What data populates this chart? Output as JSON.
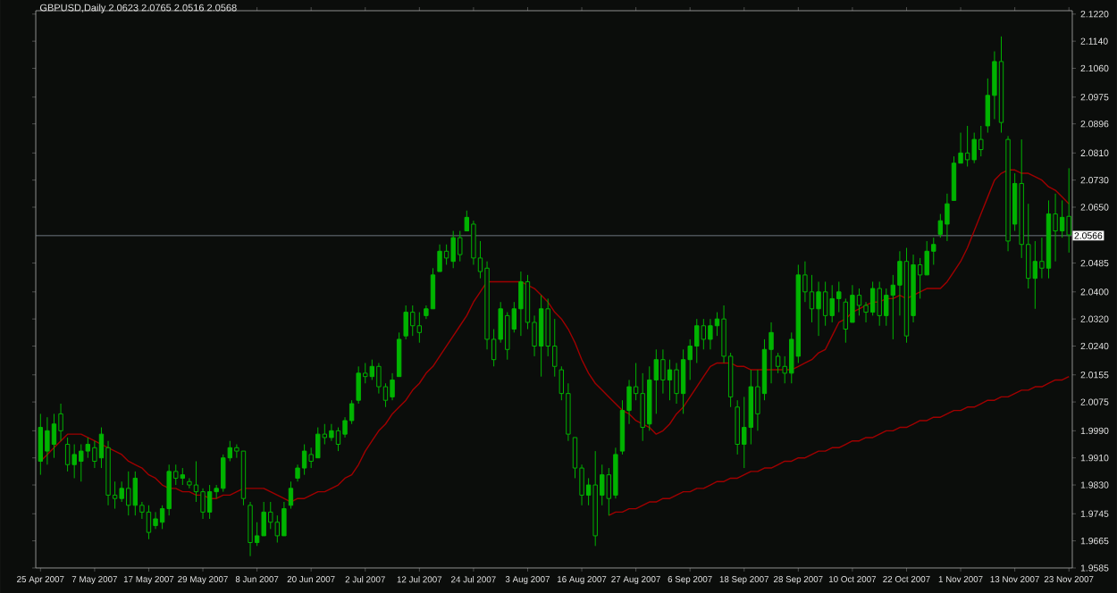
{
  "chart_data": {
    "type": "candlestick",
    "title": "GBPUSD,Daily  2.0623 2.0765 2.0516 2.0568",
    "color": "#00b400",
    "categories": [
      "25 Apr 2007",
      null,
      null,
      null,
      null,
      null,
      null,
      null,
      "7 May 2007",
      null,
      null,
      null,
      null,
      null,
      null,
      null,
      "17 May 2007",
      null,
      null,
      null,
      null,
      null,
      null,
      null,
      "29 May 2007",
      null,
      null,
      null,
      null,
      null,
      null,
      null,
      "8 Jun 2007",
      null,
      null,
      null,
      null,
      null,
      null,
      null,
      "20 Jun 2007",
      null,
      null,
      null,
      null,
      null,
      null,
      null,
      "2 Jul 2007",
      null,
      null,
      null,
      null,
      null,
      null,
      null,
      "12 Jul 2007",
      null,
      null,
      null,
      null,
      null,
      null,
      null,
      "24 Jul 2007",
      null,
      null,
      null,
      null,
      null,
      null,
      null,
      "3 Aug 2007",
      null,
      null,
      null,
      null,
      null,
      null,
      null,
      "16 Aug 2007",
      null,
      null,
      null,
      null,
      null,
      null,
      null,
      "27 Aug 2007",
      null,
      null,
      null,
      null,
      null,
      null,
      null,
      "6 Sep 2007",
      null,
      null,
      null,
      null,
      null,
      null,
      null,
      "18 Sep 2007",
      null,
      null,
      null,
      null,
      null,
      null,
      null,
      "28 Sep 2007",
      null,
      null,
      null,
      null,
      null,
      null,
      null,
      "10 Oct 2007",
      null,
      null,
      null,
      null,
      null,
      null,
      null,
      "22 Oct 2007",
      null,
      null,
      null,
      null,
      null,
      null,
      null,
      "1 Nov 2007",
      null,
      null,
      null,
      null,
      null,
      null,
      null,
      "13 Nov 2007",
      null,
      null,
      null,
      null,
      null,
      null,
      null,
      "23 Nov 2007"
    ],
    "ohlc": [
      [
        1.99,
        2.004,
        1.986,
        2.0
      ],
      [
        1.993,
        2.003,
        1.989,
        1.999
      ],
      [
        1.995,
        2.004,
        1.991,
        2.001
      ],
      [
        2.004,
        2.007,
        1.996,
        1.999
      ],
      [
        1.995,
        1.997,
        1.987,
        1.989
      ],
      [
        1.989,
        1.995,
        1.985,
        1.992
      ],
      [
        1.99,
        1.995,
        1.984,
        1.993
      ],
      [
        1.993,
        1.997,
        1.991,
        1.995
      ],
      [
        1.994,
        1.996,
        1.988,
        1.99
      ],
      [
        1.991,
        2.0,
        1.988,
        1.998
      ],
      [
        1.994,
        1.996,
        1.977,
        1.98
      ],
      [
        1.98,
        1.984,
        1.976,
        1.979
      ],
      [
        1.979,
        1.984,
        1.978,
        1.982
      ],
      [
        1.982,
        1.987,
        1.974,
        1.977
      ],
      [
        1.977,
        1.987,
        1.974,
        1.985
      ],
      [
        1.977,
        1.978,
        1.973,
        1.975
      ],
      [
        1.975,
        1.977,
        1.967,
        1.969
      ],
      [
        1.971,
        1.975,
        1.97,
        1.973
      ],
      [
        1.972,
        1.977,
        1.97,
        1.976
      ],
      [
        1.976,
        1.989,
        1.974,
        1.987
      ],
      [
        1.987,
        1.989,
        1.983,
        1.985
      ],
      [
        1.985,
        1.988,
        1.983,
        1.986
      ],
      [
        1.984,
        1.985,
        1.982,
        1.983
      ],
      [
        1.983,
        1.99,
        1.978,
        1.981
      ],
      [
        1.981,
        1.982,
        1.973,
        1.975
      ],
      [
        1.975,
        1.983,
        1.973,
        1.981
      ],
      [
        1.981,
        1.983,
        1.979,
        1.982
      ],
      [
        1.982,
        1.992,
        1.981,
        1.991
      ],
      [
        1.991,
        1.996,
        1.99,
        1.994
      ],
      [
        1.994,
        1.995,
        1.991,
        1.993
      ],
      [
        1.993,
        1.993,
        1.977,
        1.979
      ],
      [
        1.977,
        1.978,
        1.962,
        1.966
      ],
      [
        1.966,
        1.972,
        1.965,
        1.968
      ],
      [
        1.968,
        1.978,
        1.968,
        1.975
      ],
      [
        1.975,
        1.978,
        1.97,
        1.972
      ],
      [
        1.972,
        1.974,
        1.966,
        1.968
      ],
      [
        1.968,
        1.978,
        1.968,
        1.976
      ],
      [
        1.977,
        1.984,
        1.976,
        1.982
      ],
      [
        1.985,
        1.989,
        1.984,
        1.988
      ],
      [
        1.988,
        1.995,
        1.986,
        1.993
      ],
      [
        1.992,
        1.994,
        1.988,
        1.99
      ],
      [
        1.991,
        2.0,
        1.991,
        1.998
      ],
      [
        1.998,
        2.001,
        1.995,
        1.997
      ],
      [
        1.997,
        2.001,
        1.996,
        1.999
      ],
      [
        1.999,
        2.0,
        1.993,
        1.995
      ],
      [
        1.998,
        2.003,
        1.997,
        2.002
      ],
      [
        2.002,
        2.008,
        2.001,
        2.007
      ],
      [
        2.008,
        2.018,
        2.007,
        2.016
      ],
      [
        2.016,
        2.019,
        2.013,
        2.015
      ],
      [
        2.015,
        2.02,
        2.014,
        2.018
      ],
      [
        2.018,
        2.019,
        2.01,
        2.012
      ],
      [
        2.012,
        2.013,
        2.006,
        2.008
      ],
      [
        2.009,
        2.016,
        2.008,
        2.014
      ],
      [
        2.015,
        2.028,
        2.015,
        2.026
      ],
      [
        2.027,
        2.036,
        2.026,
        2.034
      ],
      [
        2.034,
        2.036,
        2.027,
        2.03
      ],
      [
        2.03,
        2.034,
        2.025,
        2.028
      ],
      [
        2.033,
        2.036,
        2.032,
        2.035
      ],
      [
        2.035,
        2.047,
        2.035,
        2.045
      ],
      [
        2.046,
        2.054,
        2.046,
        2.052
      ],
      [
        2.052,
        2.054,
        2.048,
        2.05
      ],
      [
        2.049,
        2.058,
        2.047,
        2.056
      ],
      [
        2.056,
        2.058,
        2.049,
        2.051
      ],
      [
        2.058,
        2.064,
        2.058,
        2.062
      ],
      [
        2.06,
        2.061,
        2.048,
        2.05
      ],
      [
        2.05,
        2.055,
        2.044,
        2.046
      ],
      [
        2.047,
        2.049,
        2.023,
        2.026
      ],
      [
        2.026,
        2.029,
        2.018,
        2.02
      ],
      [
        2.026,
        2.037,
        2.025,
        2.035
      ],
      [
        2.033,
        2.034,
        2.02,
        2.023
      ],
      [
        2.029,
        2.037,
        2.028,
        2.035
      ],
      [
        2.035,
        2.046,
        2.027,
        2.043
      ],
      [
        2.043,
        2.045,
        2.029,
        2.031
      ],
      [
        2.031,
        2.033,
        2.021,
        2.024
      ],
      [
        2.024,
        2.039,
        2.015,
        2.035
      ],
      [
        2.035,
        2.038,
        2.021,
        2.024
      ],
      [
        2.024,
        2.032,
        2.015,
        2.018
      ],
      [
        2.017,
        2.018,
        2.008,
        2.01
      ],
      [
        2.01,
        2.013,
        1.996,
        1.998
      ],
      [
        1.997,
        1.997,
        1.985,
        1.988
      ],
      [
        1.988,
        1.989,
        1.977,
        1.98
      ],
      [
        1.98,
        1.985,
        1.977,
        1.983
      ],
      [
        1.983,
        1.993,
        1.965,
        1.968
      ],
      [
        1.98,
        1.989,
        1.977,
        1.986
      ],
      [
        1.986,
        1.988,
        1.974,
        1.979
      ],
      [
        1.98,
        1.994,
        1.979,
        1.992
      ],
      [
        1.993,
        2.008,
        1.992,
        2.005
      ],
      [
        2.005,
        2.014,
        2.001,
        2.012
      ],
      [
        2.012,
        2.019,
        2.008,
        2.01
      ],
      [
        2.01,
        2.016,
        1.996,
        2.0
      ],
      [
        2.001,
        2.018,
        1.999,
        2.014
      ],
      [
        2.014,
        2.023,
        2.004,
        2.02
      ],
      [
        2.02,
        2.023,
        2.01,
        2.014
      ],
      [
        2.014,
        2.02,
        2.008,
        2.017
      ],
      [
        2.017,
        2.019,
        2.007,
        2.01
      ],
      [
        2.01,
        2.023,
        2.004,
        2.02
      ],
      [
        2.02,
        2.026,
        2.014,
        2.024
      ],
      [
        2.024,
        2.032,
        2.019,
        2.03
      ],
      [
        2.03,
        2.032,
        2.023,
        2.026
      ],
      [
        2.026,
        2.032,
        2.023,
        2.03
      ],
      [
        2.03,
        2.034,
        2.027,
        2.032
      ],
      [
        2.032,
        2.036,
        2.019,
        2.021
      ],
      [
        2.021,
        2.022,
        2.006,
        2.009
      ],
      [
        2.006,
        2.008,
        1.992,
        1.995
      ],
      [
        1.995,
        2.009,
        1.988,
        2.0
      ],
      [
        2.0,
        2.017,
        1.995,
        2.012
      ],
      [
        2.012,
        2.017,
        1.999,
        2.004
      ],
      [
        2.01,
        2.026,
        2.008,
        2.023
      ],
      [
        2.023,
        2.031,
        2.013,
        2.028
      ],
      [
        2.021,
        2.022,
        2.016,
        2.018
      ],
      [
        2.018,
        2.021,
        2.013,
        2.016
      ],
      [
        2.016,
        2.028,
        2.013,
        2.026
      ],
      [
        2.021,
        2.048,
        2.019,
        2.045
      ],
      [
        2.045,
        2.049,
        2.037,
        2.04
      ],
      [
        2.04,
        2.045,
        2.031,
        2.035
      ],
      [
        2.035,
        2.043,
        2.027,
        2.04
      ],
      [
        2.04,
        2.043,
        2.03,
        2.033
      ],
      [
        2.033,
        2.042,
        2.031,
        2.038
      ],
      [
        2.038,
        2.043,
        2.034,
        2.04
      ],
      [
        2.037,
        2.038,
        2.025,
        2.029
      ],
      [
        2.031,
        2.042,
        2.031,
        2.039
      ],
      [
        2.039,
        2.041,
        2.033,
        2.036
      ],
      [
        2.036,
        2.037,
        2.031,
        2.034
      ],
      [
        2.034,
        2.043,
        2.033,
        2.041
      ],
      [
        2.041,
        2.043,
        2.03,
        2.033
      ],
      [
        2.033,
        2.041,
        2.03,
        2.039
      ],
      [
        2.039,
        2.045,
        2.026,
        2.042
      ],
      [
        2.042,
        2.052,
        2.033,
        2.049
      ],
      [
        2.049,
        2.053,
        2.025,
        2.027
      ],
      [
        2.033,
        2.051,
        2.031,
        2.048
      ],
      [
        2.048,
        2.05,
        2.038,
        2.045
      ],
      [
        2.045,
        2.055,
        2.045,
        2.052
      ],
      [
        2.052,
        2.056,
        2.048,
        2.054
      ],
      [
        2.057,
        2.063,
        2.056,
        2.061
      ],
      [
        2.06,
        2.069,
        2.055,
        2.066
      ],
      [
        2.067,
        2.08,
        2.067,
        2.078
      ],
      [
        2.078,
        2.087,
        2.078,
        2.081
      ],
      [
        2.081,
        2.089,
        2.077,
        2.079
      ],
      [
        2.079,
        2.087,
        2.078,
        2.085
      ],
      [
        2.085,
        2.089,
        2.08,
        2.082
      ],
      [
        2.089,
        2.103,
        2.087,
        2.098
      ],
      [
        2.098,
        2.111,
        2.091,
        2.108
      ],
      [
        2.108,
        2.1154,
        2.087,
        2.09
      ],
      [
        2.085,
        2.086,
        2.052,
        2.055
      ],
      [
        2.06,
        2.075,
        2.058,
        2.072
      ],
      [
        2.072,
        2.085,
        2.05,
        2.054
      ],
      [
        2.054,
        2.066,
        2.041,
        2.044
      ],
      [
        2.044,
        2.055,
        2.035,
        2.049
      ],
      [
        2.049,
        2.056,
        2.044,
        2.047
      ],
      [
        2.047,
        2.067,
        2.044,
        2.063
      ],
      [
        2.063,
        2.069,
        2.049,
        2.058
      ],
      [
        2.058,
        2.067,
        2.056,
        2.062
      ],
      [
        2.0623,
        2.0765,
        2.0516,
        2.0568
      ]
    ],
    "series": [
      {
        "type": "line",
        "color": "#a00000",
        "values": [
          1.99,
          1.992,
          1.994,
          1.996,
          1.998,
          1.998,
          1.998,
          1.997,
          1.996,
          1.995,
          1.994,
          1.993,
          1.992,
          1.99,
          1.989,
          1.988,
          1.986,
          1.985,
          1.983,
          1.982,
          1.982,
          1.981,
          1.981,
          1.98,
          1.98,
          1.979,
          1.979,
          1.98,
          1.98,
          1.981,
          1.982,
          1.982,
          1.982,
          1.982,
          1.981,
          1.98,
          1.979,
          1.978,
          1.979,
          1.979,
          1.98,
          1.981,
          1.981,
          1.982,
          1.983,
          1.985,
          1.986,
          1.989,
          1.993,
          1.996,
          1.999,
          2.001,
          2.004,
          2.006,
          2.008,
          2.011,
          2.013,
          2.016,
          2.018,
          2.021,
          2.024,
          2.027,
          2.03,
          2.033,
          2.037,
          2.04,
          2.043,
          2.043,
          2.043,
          2.043,
          2.043,
          2.043,
          2.042,
          2.041,
          2.039,
          2.037,
          2.034,
          2.032,
          2.029,
          2.025,
          2.02,
          2.016,
          2.013,
          2.011,
          2.009,
          2.007,
          2.005,
          2.004,
          2.002,
          2.001,
          2.0,
          1.998,
          1.999,
          2.001,
          2.004,
          2.006,
          2.009,
          2.012,
          2.015,
          2.018,
          2.019,
          2.019,
          2.019,
          2.018,
          2.018,
          2.017,
          2.017,
          2.017,
          2.017,
          2.017,
          2.017,
          2.017,
          2.018,
          2.019,
          2.02,
          2.022,
          2.023,
          2.027,
          2.031,
          2.032,
          2.034,
          2.035,
          2.036,
          2.037,
          2.037,
          2.038,
          2.038,
          2.039,
          2.038,
          2.039,
          2.04,
          2.041,
          2.041,
          2.041,
          2.043,
          2.046,
          2.049,
          2.053,
          2.058,
          2.063,
          2.068,
          2.073,
          2.075,
          2.076,
          2.076,
          2.075,
          2.075,
          2.074,
          2.073,
          2.071,
          2.07,
          2.068,
          2.066
        ]
      },
      {
        "type": "line",
        "color": "#a00000",
        "values": [
          null,
          null,
          null,
          null,
          null,
          null,
          null,
          null,
          null,
          null,
          null,
          null,
          null,
          null,
          null,
          null,
          null,
          null,
          null,
          null,
          null,
          null,
          null,
          null,
          null,
          null,
          null,
          null,
          null,
          null,
          null,
          null,
          null,
          null,
          null,
          null,
          null,
          null,
          null,
          null,
          null,
          null,
          null,
          null,
          null,
          null,
          null,
          null,
          null,
          null,
          null,
          null,
          null,
          null,
          null,
          null,
          null,
          null,
          null,
          null,
          null,
          null,
          null,
          null,
          null,
          null,
          null,
          null,
          null,
          null,
          null,
          null,
          null,
          null,
          null,
          null,
          null,
          null,
          null,
          null,
          null,
          null,
          null,
          null,
          1.974,
          1.975,
          1.975,
          1.976,
          1.976,
          1.977,
          1.978,
          1.978,
          1.979,
          1.979,
          1.98,
          1.981,
          1.981,
          1.982,
          1.982,
          1.983,
          1.984,
          1.984,
          1.985,
          1.985,
          1.986,
          1.987,
          1.987,
          1.988,
          1.988,
          1.989,
          1.99,
          1.99,
          1.991,
          1.991,
          1.992,
          1.993,
          1.993,
          1.994,
          1.994,
          1.995,
          1.996,
          1.996,
          1.997,
          1.997,
          1.998,
          1.999,
          1.999,
          2.0,
          2.0,
          2.001,
          2.002,
          2.002,
          2.003,
          2.003,
          2.004,
          2.005,
          2.005,
          2.006,
          2.006,
          2.007,
          2.008,
          2.008,
          2.009,
          2.009,
          2.01,
          2.011,
          2.011,
          2.012,
          2.012,
          2.013,
          2.014,
          2.014,
          2.015
        ]
      }
    ],
    "ylim": [
      1.9585,
      2.123
    ],
    "yticks": [
      {
        "value": 2.122,
        "label": "2.1220"
      },
      {
        "value": 2.114,
        "label": "2.1140"
      },
      {
        "value": 2.106,
        "label": "2.1060"
      },
      {
        "value": 2.0975,
        "label": "2.0975"
      },
      {
        "value": 2.0896,
        "label": "2.0896"
      },
      {
        "value": 2.081,
        "label": "2.0810"
      },
      {
        "value": 2.073,
        "label": "2.0730"
      },
      {
        "value": 2.065,
        "label": "2.0650"
      },
      {
        "value": 2.0485,
        "label": "2.0485"
      },
      {
        "value": 2.04,
        "label": "2.0400"
      },
      {
        "value": 2.032,
        "label": "2.0320"
      },
      {
        "value": 2.024,
        "label": "2.0240"
      },
      {
        "value": 2.0155,
        "label": "2.0155"
      },
      {
        "value": 2.0075,
        "label": "2.0075"
      },
      {
        "value": 1.999,
        "label": "1.9990"
      },
      {
        "value": 1.991,
        "label": "1.9910"
      },
      {
        "value": 1.983,
        "label": "1.9830"
      },
      {
        "value": 1.9745,
        "label": "1.9745"
      },
      {
        "value": 1.9665,
        "label": "1.9665"
      },
      {
        "value": 1.9585,
        "label": "1.9585"
      }
    ],
    "ref_lines": [
      {
        "axis": "y",
        "value": 2.0566,
        "label": "2.0566",
        "color": "#6e7680"
      }
    ]
  }
}
